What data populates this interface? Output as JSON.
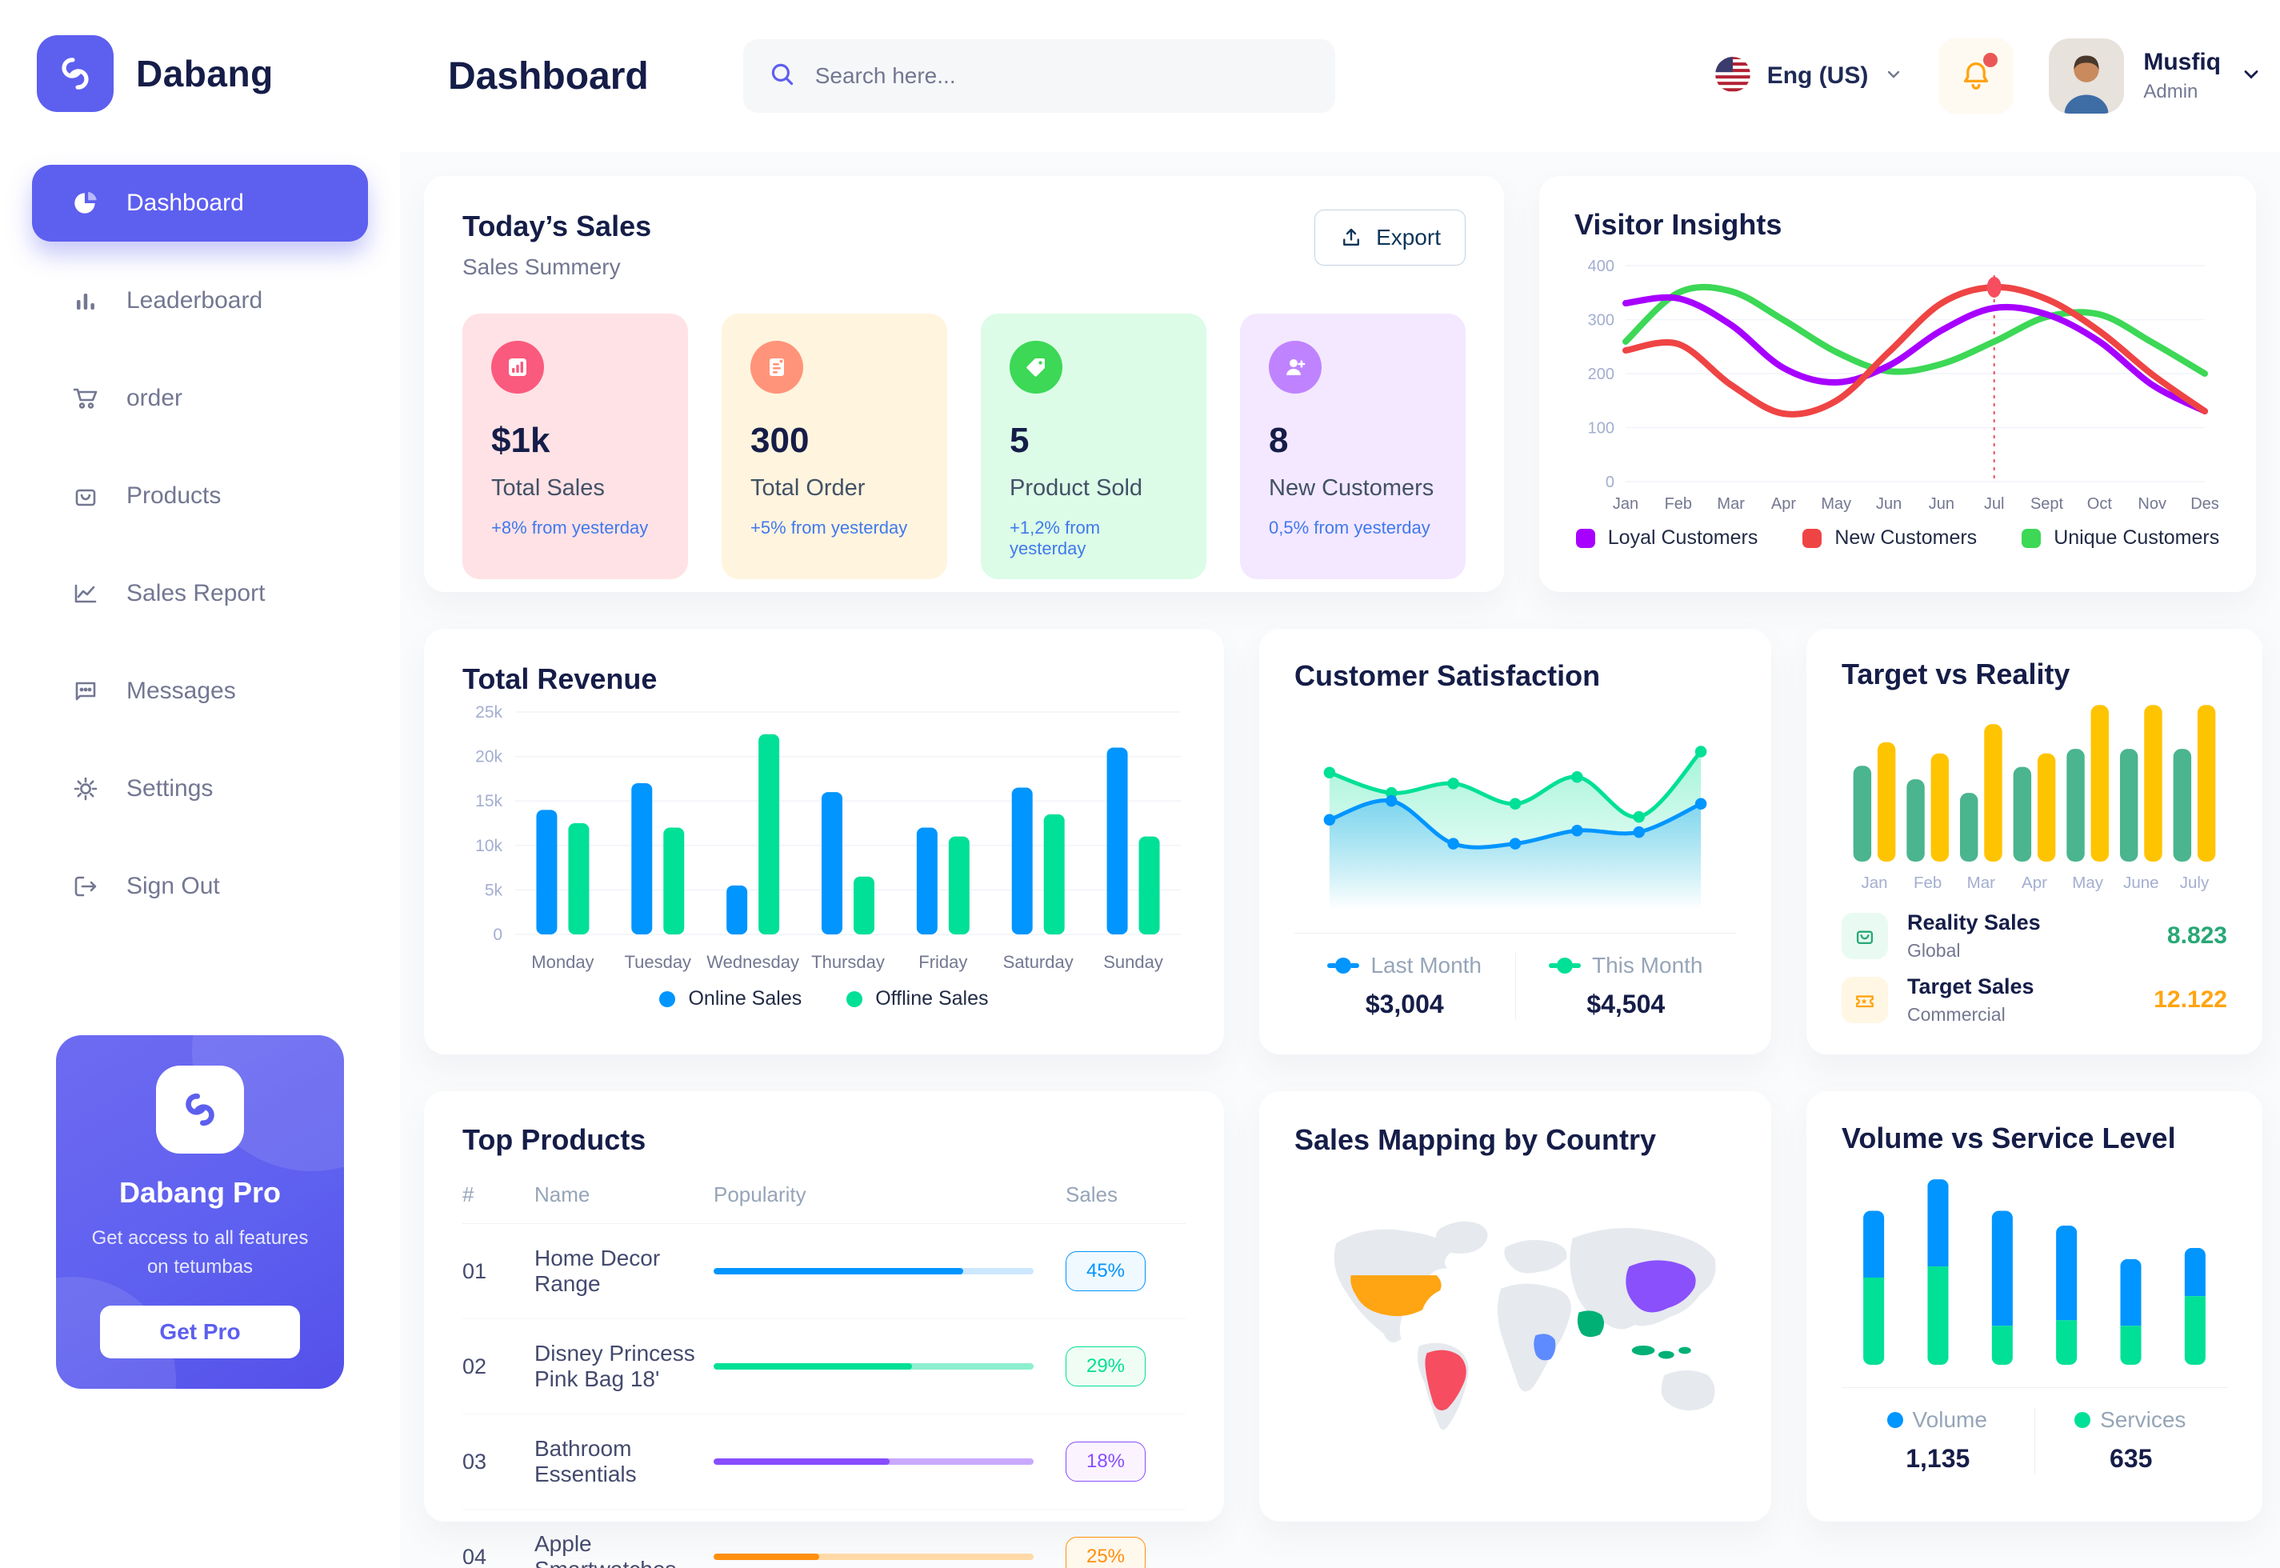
{
  "brand": {
    "name": "Dabang"
  },
  "header": {
    "title": "Dashboard",
    "search_placeholder": "Search here...",
    "language": "Eng (US)",
    "user": {
      "name": "Musfiq",
      "role": "Admin"
    }
  },
  "sidebar": {
    "items": [
      {
        "label": "Dashboard"
      },
      {
        "label": "Leaderboard"
      },
      {
        "label": "order"
      },
      {
        "label": "Products"
      },
      {
        "label": "Sales Report"
      },
      {
        "label": "Messages"
      },
      {
        "label": "Settings"
      },
      {
        "label": "Sign Out"
      }
    ],
    "pro": {
      "title": "Dabang Pro",
      "subtitle": "Get access to all features on tetumbas",
      "button": "Get Pro"
    }
  },
  "today_sales": {
    "title": "Today’s Sales",
    "subtitle": "Sales Summery",
    "export_label": "Export",
    "delta_color": "#4079ED",
    "cards": [
      {
        "value": "$1k",
        "label": "Total Sales",
        "delta": "+8% from yesterday",
        "bg": "#FFE2E5",
        "icon_bg": "#FA5A7D",
        "icon": "bar-chart-icon"
      },
      {
        "value": "300",
        "label": "Total Order",
        "delta": "+5% from yesterday",
        "bg": "#FFF4DE",
        "icon_bg": "#FF947A",
        "icon": "order-file-icon"
      },
      {
        "value": "5",
        "label": "Product Sold",
        "delta": "+1,2% from yesterday",
        "bg": "#DCFCE7",
        "icon_bg": "#3CD856",
        "icon": "tag-icon"
      },
      {
        "value": "8",
        "label": "New Customers",
        "delta": "0,5% from yesterday",
        "bg": "#F3E8FF",
        "icon_bg": "#BF83FF",
        "icon": "user-plus-icon"
      }
    ]
  },
  "visitor_insights": {
    "title": "Visitor Insights",
    "chart_data": {
      "type": "line",
      "x": [
        "Jan",
        "Feb",
        "Mar",
        "Apr",
        "May",
        "Jun",
        "Jun",
        "Jul",
        "Sept",
        "Oct",
        "Nov",
        "Des"
      ],
      "yticks": [
        0,
        100,
        200,
        300,
        400
      ],
      "ylim": [
        0,
        400
      ],
      "grid": true,
      "legend_position": "bottom",
      "series": [
        {
          "name": "Loyal Customers",
          "color": "#A700FF",
          "values": [
            330,
            340,
            290,
            210,
            183,
            215,
            280,
            322,
            310,
            260,
            180,
            130
          ]
        },
        {
          "name": "New Customers",
          "color": "#EF4444",
          "values": [
            243,
            255,
            180,
            126,
            150,
            240,
            330,
            360,
            338,
            278,
            198,
            130
          ]
        },
        {
          "name": "Unique Customers",
          "color": "#3CD856",
          "values": [
            260,
            350,
            352,
            300,
            240,
            205,
            218,
            260,
            305,
            310,
            258,
            200
          ]
        }
      ],
      "highlight": {
        "series_index": 1,
        "x_index": 7
      }
    }
  },
  "total_revenue": {
    "title": "Total Revenue",
    "chart_data": {
      "type": "bar",
      "categories": [
        "Monday",
        "Tuesday",
        "Wednesday",
        "Thursday",
        "Friday",
        "Saturday",
        "Sunday"
      ],
      "ytick_labels": [
        "0",
        "5k",
        "10k",
        "15k",
        "20k",
        "25k"
      ],
      "ylim": [
        0,
        25000
      ],
      "grid": true,
      "legend_position": "bottom",
      "series": [
        {
          "name": "Online Sales",
          "color": "#0095FF",
          "values": [
            14000,
            17000,
            5500,
            16000,
            12000,
            16500,
            21000
          ]
        },
        {
          "name": "Offline Sales",
          "color": "#00E096",
          "values": [
            12500,
            12000,
            22500,
            6500,
            11000,
            13500,
            11000
          ]
        }
      ]
    }
  },
  "customer_satisfaction": {
    "title": "Customer Satisfaction",
    "chart_data": {
      "type": "area",
      "ylim": [
        0,
        100
      ],
      "legend_position": "bottom",
      "series": [
        {
          "name": "Last Month",
          "color": "#0095FF",
          "total": "$3,004",
          "values": [
            45,
            57,
            30,
            30,
            38,
            37,
            55
          ]
        },
        {
          "name": "This Month",
          "color": "#00E096",
          "total": "$4,504",
          "values": [
            75,
            62,
            68,
            55,
            72,
            47,
            88
          ]
        }
      ]
    }
  },
  "target_vs_reality": {
    "title": "Target vs Reality",
    "chart_data": {
      "type": "bar",
      "categories": [
        "Jan",
        "Feb",
        "Mar",
        "Apr",
        "May",
        "June",
        "July"
      ],
      "ylim": [
        0,
        14
      ],
      "series": [
        {
          "name": "Reality Sales",
          "color": "#4AB58E",
          "values": [
            8.5,
            7.3,
            6.1,
            8.4,
            10,
            10,
            10
          ]
        },
        {
          "name": "Target Sales",
          "color": "#FFC400",
          "values": [
            10.6,
            9.6,
            12.2,
            9.6,
            13.9,
            13.9,
            13.9
          ]
        }
      ]
    },
    "legend": [
      {
        "name": "Reality Sales",
        "subtitle": "Global",
        "value": "8.823",
        "value_color": "#27A876",
        "tile_bg": "#E9FAF3",
        "icon": "shopping-bag-icon"
      },
      {
        "name": "Target Sales",
        "subtitle": "Commercial",
        "value": "12.122",
        "value_color": "#FFA412",
        "tile_bg": "#FFF6E3",
        "icon": "ticket-icon"
      }
    ]
  },
  "top_products": {
    "title": "Top Products",
    "columns": [
      "#",
      "Name",
      "Popularity",
      "Sales"
    ],
    "rows": [
      {
        "num": "01",
        "name": "Home Decor Range",
        "fill_pct": 78,
        "color": "#0095FF",
        "track": "#CDE7FF",
        "sales": "45%",
        "badge_border": "#0095FF",
        "badge_bg": "#F0F9FF"
      },
      {
        "num": "02",
        "name": "Disney Princess Pink Bag 18'",
        "fill_pct": 62,
        "color": "#00E096",
        "track": "#8CEFD0",
        "sales": "29%",
        "badge_border": "#00E096",
        "badge_bg": "#F0FDF4"
      },
      {
        "num": "03",
        "name": "Bathroom Essentials",
        "fill_pct": 55,
        "color": "#884DFF",
        "track": "#C9A9FF",
        "sales": "18%",
        "badge_border": "#884DFF",
        "badge_bg": "#FBF4FF"
      },
      {
        "num": "04",
        "name": "Apple Smartwatches",
        "fill_pct": 33,
        "color": "#FF8F0D",
        "track": "#FFD9A7",
        "sales": "25%",
        "badge_border": "#FF8F0D",
        "badge_bg": "#FFF8EC"
      }
    ]
  },
  "sales_mapping": {
    "title": "Sales Mapping by Country",
    "colors": {
      "land": "#E6E9EE",
      "usa": "#FFA412",
      "brazil": "#F64E60",
      "saudi_arabia": "#00B074",
      "dr_congo": "#5E8BFF",
      "china": "#8950FC",
      "indonesia": "#00B074"
    }
  },
  "volume_service": {
    "title": "Volume vs Service Level",
    "chart_data": {
      "type": "stacked-bar",
      "ylim": [
        0,
        100
      ],
      "legend_position": "bottom",
      "series": [
        {
          "name": "Volume",
          "color": "#0095FF",
          "total": "1,135",
          "values": [
            36,
            47,
            62,
            51,
            36,
            26
          ]
        },
        {
          "name": "Services",
          "color": "#00E096",
          "total": "635",
          "values": [
            47,
            53,
            21,
            24,
            21,
            37
          ]
        }
      ]
    }
  }
}
